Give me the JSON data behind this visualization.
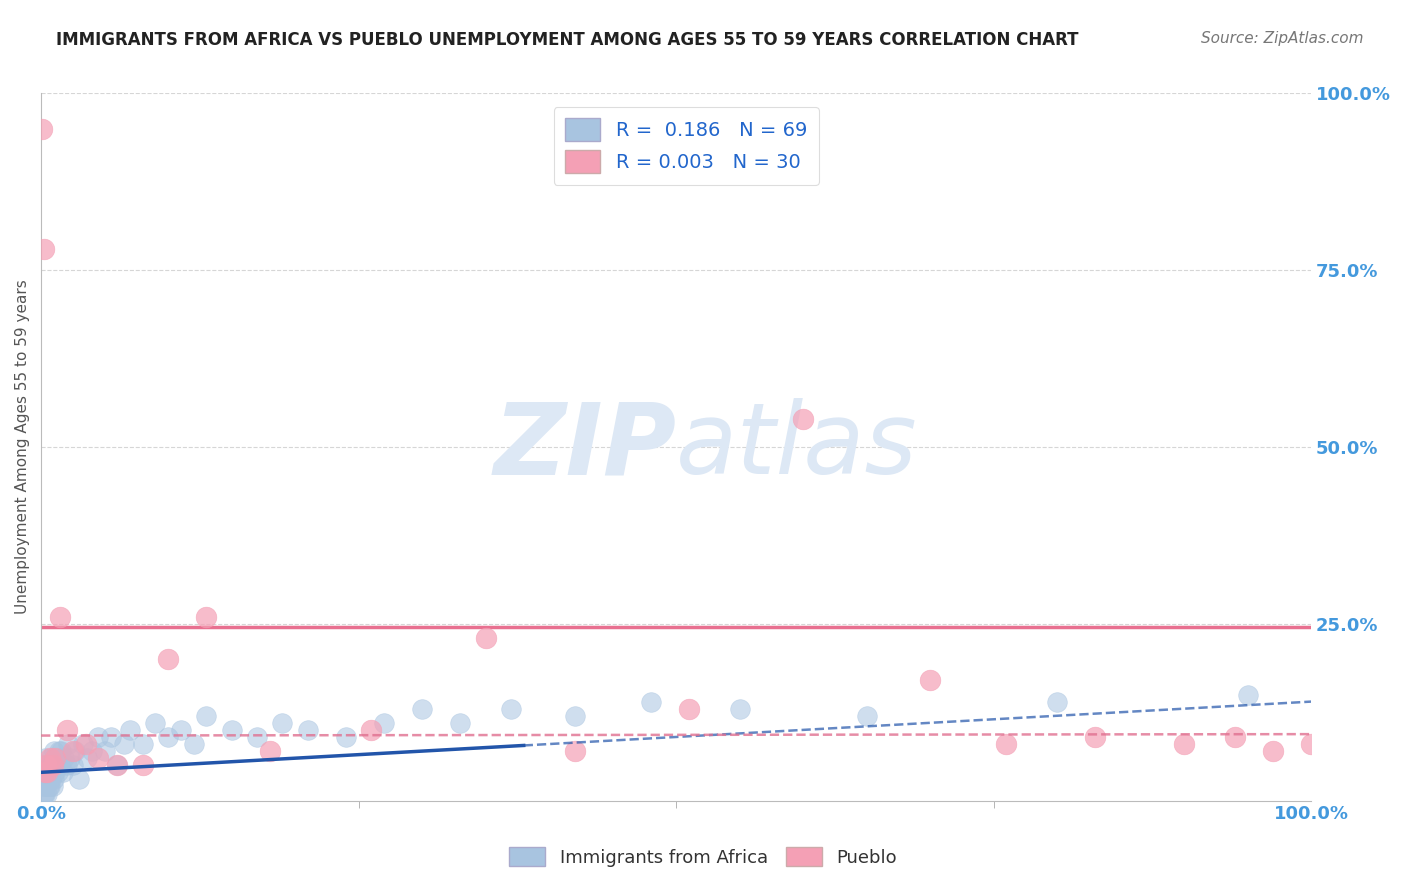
{
  "title": "IMMIGRANTS FROM AFRICA VS PUEBLO UNEMPLOYMENT AMONG AGES 55 TO 59 YEARS CORRELATION CHART",
  "source": "Source: ZipAtlas.com",
  "ylabel": "Unemployment Among Ages 55 to 59 years",
  "xlim": [
    0,
    1.0
  ],
  "ylim": [
    0,
    1.0
  ],
  "xtick_labels": [
    "0.0%",
    "100.0%"
  ],
  "ytick_labels": [
    "25.0%",
    "50.0%",
    "75.0%",
    "100.0%"
  ],
  "ytick_positions": [
    0.25,
    0.5,
    0.75,
    1.0
  ],
  "grid_color": "#cccccc",
  "background_color": "#ffffff",
  "title_fontsize": 12,
  "source_fontsize": 11,
  "legend_R1": "0.186",
  "legend_N1": "69",
  "legend_R2": "0.003",
  "legend_N2": "30",
  "blue_color": "#a8c4e0",
  "pink_color": "#f4a0b5",
  "blue_line_color": "#2255aa",
  "pink_line_color": "#e07090",
  "axis_label_color": "#4499dd",
  "horizontal_line_y": 0.245,
  "horizontal_line_color": "#e87090",
  "watermark_color": "#dde8f5",
  "watermark_fontsize": 72,
  "blue_scatter_x": [
    0.001,
    0.001,
    0.002,
    0.002,
    0.002,
    0.003,
    0.003,
    0.003,
    0.003,
    0.004,
    0.004,
    0.004,
    0.005,
    0.005,
    0.005,
    0.006,
    0.006,
    0.007,
    0.007,
    0.008,
    0.008,
    0.009,
    0.009,
    0.01,
    0.01,
    0.011,
    0.012,
    0.013,
    0.014,
    0.015,
    0.016,
    0.017,
    0.018,
    0.02,
    0.021,
    0.023,
    0.025,
    0.027,
    0.03,
    0.033,
    0.036,
    0.04,
    0.045,
    0.05,
    0.055,
    0.06,
    0.065,
    0.07,
    0.08,
    0.09,
    0.1,
    0.11,
    0.12,
    0.13,
    0.15,
    0.17,
    0.19,
    0.21,
    0.24,
    0.27,
    0.3,
    0.33,
    0.37,
    0.42,
    0.48,
    0.55,
    0.65,
    0.8,
    0.95
  ],
  "blue_scatter_y": [
    0.02,
    0.03,
    0.01,
    0.03,
    0.05,
    0.01,
    0.02,
    0.04,
    0.06,
    0.02,
    0.03,
    0.05,
    0.01,
    0.03,
    0.04,
    0.02,
    0.04,
    0.02,
    0.05,
    0.03,
    0.06,
    0.02,
    0.05,
    0.03,
    0.07,
    0.04,
    0.06,
    0.04,
    0.07,
    0.05,
    0.07,
    0.04,
    0.06,
    0.05,
    0.08,
    0.06,
    0.05,
    0.07,
    0.03,
    0.08,
    0.06,
    0.07,
    0.09,
    0.07,
    0.09,
    0.05,
    0.08,
    0.1,
    0.08,
    0.11,
    0.09,
    0.1,
    0.08,
    0.12,
    0.1,
    0.09,
    0.11,
    0.1,
    0.09,
    0.11,
    0.13,
    0.11,
    0.13,
    0.12,
    0.14,
    0.13,
    0.12,
    0.14,
    0.15
  ],
  "pink_scatter_x": [
    0.001,
    0.002,
    0.003,
    0.004,
    0.005,
    0.007,
    0.009,
    0.011,
    0.015,
    0.02,
    0.025,
    0.035,
    0.045,
    0.06,
    0.08,
    0.1,
    0.13,
    0.18,
    0.26,
    0.35,
    0.42,
    0.51,
    0.6,
    0.7,
    0.76,
    0.83,
    0.9,
    0.94,
    0.97,
    1.0
  ],
  "pink_scatter_y": [
    0.95,
    0.78,
    0.04,
    0.05,
    0.04,
    0.06,
    0.05,
    0.06,
    0.26,
    0.1,
    0.07,
    0.08,
    0.06,
    0.05,
    0.05,
    0.2,
    0.26,
    0.07,
    0.1,
    0.23,
    0.07,
    0.13,
    0.54,
    0.17,
    0.08,
    0.09,
    0.08,
    0.09,
    0.07,
    0.08
  ],
  "blue_trendline_x_solid_end": 0.38,
  "blue_trendline_slope": 0.1,
  "blue_trendline_intercept": 0.04,
  "pink_trendline_slope": 0.002,
  "pink_trendline_intercept": 0.092
}
